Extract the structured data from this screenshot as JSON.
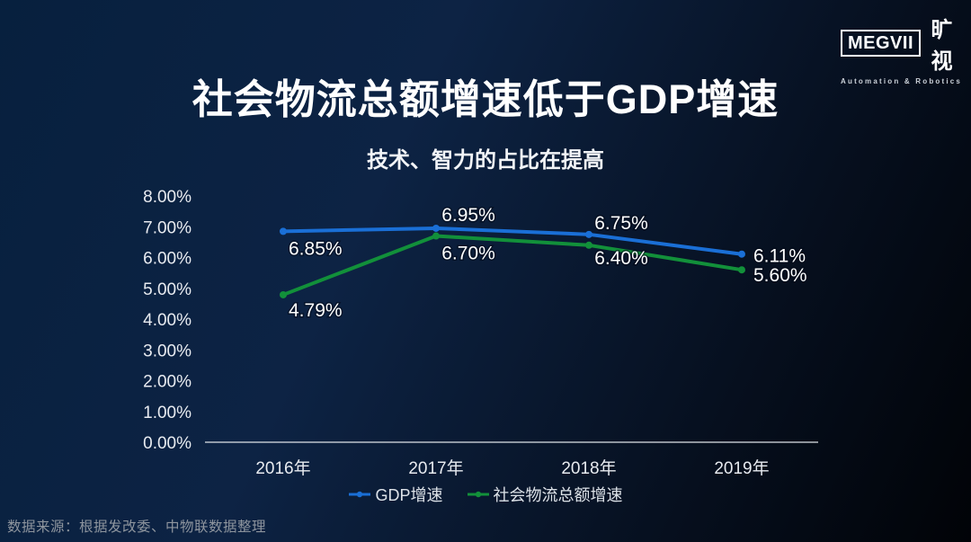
{
  "header": {
    "logo": {
      "brand": "MEGVII",
      "brand_cn": "旷视",
      "tagline": "Automation & Robotics"
    },
    "title": "社会物流总额增速低于GDP增速",
    "subtitle": "技术、智力的占比在提高"
  },
  "chart_data": {
    "type": "line",
    "categories": [
      "2016年",
      "2017年",
      "2018年",
      "2019年"
    ],
    "series": [
      {
        "name": "GDP增速",
        "color": "#1a6fd6",
        "values": [
          6.85,
          6.95,
          6.75,
          6.11
        ],
        "labels": [
          "6.85%",
          "6.95%",
          "6.75%",
          "6.11%"
        ]
      },
      {
        "name": "社会物流总额增速",
        "color": "#12903a",
        "values": [
          4.79,
          6.7,
          6.4,
          5.6
        ],
        "labels": [
          "4.79%",
          "6.70%",
          "6.40%",
          "5.60%"
        ]
      }
    ],
    "y_ticks": [
      "8.00%",
      "7.00%",
      "6.00%",
      "5.00%",
      "4.00%",
      "3.00%",
      "2.00%",
      "1.00%",
      "0.00%"
    ],
    "ylim": [
      0,
      8
    ],
    "grid": false,
    "legend_position": "bottom"
  },
  "footer": {
    "source": "数据来源：根据发改委、中物联数据整理"
  }
}
